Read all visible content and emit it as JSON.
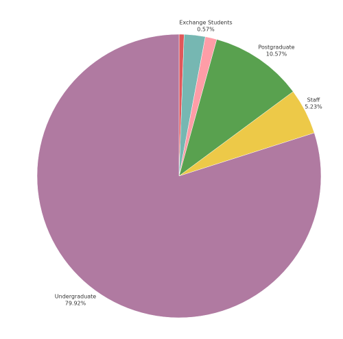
{
  "chart_data": {
    "type": "pie",
    "categories": [
      "Exchange Students",
      null,
      null,
      "Postgraduate",
      "Staff",
      "Undergraduate"
    ],
    "values": [
      0.57,
      2.4,
      1.31,
      10.57,
      5.23,
      79.92
    ],
    "value_labels": [
      "0.57%",
      null,
      null,
      "10.57%",
      "5.23%",
      "79.92%"
    ],
    "colors": [
      "#e15759",
      "#76b7b2",
      "#ff9da7",
      "#59a14f",
      "#edc948",
      "#b07aa1"
    ]
  }
}
